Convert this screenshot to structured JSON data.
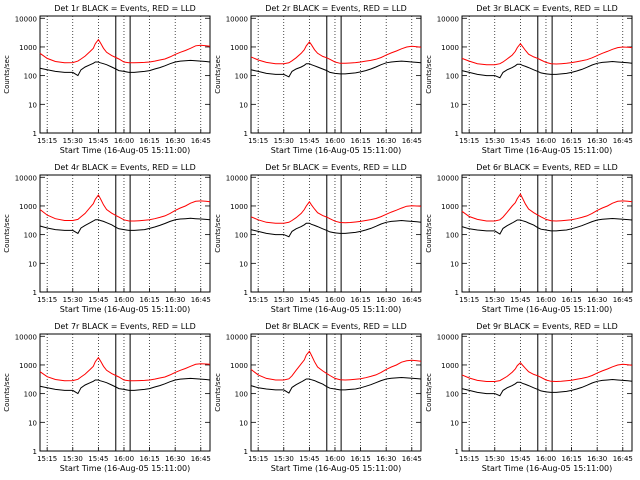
{
  "colors": {
    "events": "#000000",
    "lld": "#ff0000",
    "background": "#ffffff",
    "frame": "#000000"
  },
  "shared": {
    "xlabel": "Start Time (16-Aug-05 15:11:00)",
    "ylabel": "Counts/sec",
    "x_ticks": [
      "15:15",
      "15:30",
      "15:45",
      "16:00",
      "16:15",
      "16:30",
      "16:45"
    ],
    "x_tick_minutes": [
      15.25,
      15.5,
      15.75,
      16.0,
      16.25,
      16.5,
      16.75
    ],
    "y_ticks": [
      "1",
      "10",
      "100",
      "1000",
      "10000"
    ],
    "y_tick_values": [
      1,
      10,
      100,
      1000,
      10000
    ],
    "xlim_hours": [
      15.18,
      16.84
    ],
    "ylim": [
      1,
      12000
    ],
    "y_scale": "log"
  },
  "chart_data": [
    {
      "type": "line",
      "title": "Det 1r BLACK = Events, RED = LLD",
      "y_scale": "log",
      "x": [
        15.18,
        15.25,
        15.33,
        15.42,
        15.5,
        15.55,
        15.58,
        15.62,
        15.67,
        15.7,
        15.72,
        15.75,
        15.77,
        15.8,
        15.83,
        15.88,
        15.92,
        15.95,
        16.0,
        16.05,
        16.1,
        16.15,
        16.2,
        16.25,
        16.3,
        16.35,
        16.4,
        16.45,
        16.5,
        16.55,
        16.6,
        16.65,
        16.7,
        16.75,
        16.8,
        16.84
      ],
      "series": [
        {
          "name": "LLD",
          "values": [
            600,
            400,
            310,
            280,
            285,
            320,
            380,
            480,
            700,
            900,
            1300,
            1800,
            1400,
            900,
            650,
            500,
            430,
            380,
            300,
            280,
            280,
            285,
            290,
            300,
            320,
            350,
            380,
            450,
            550,
            650,
            750,
            900,
            1100,
            1150,
            1100,
            1050
          ]
        },
        {
          "name": "Events",
          "values": [
            180,
            160,
            140,
            130,
            130,
            100,
            160,
            200,
            240,
            270,
            300,
            300,
            280,
            260,
            240,
            200,
            170,
            150,
            140,
            130,
            130,
            135,
            140,
            150,
            170,
            190,
            220,
            260,
            300,
            320,
            330,
            340,
            330,
            320,
            310,
            300
          ]
        }
      ]
    },
    {
      "type": "line",
      "title": "Det 2r BLACK = Events, RED = LLD",
      "y_scale": "log",
      "x": [
        15.18,
        15.25,
        15.33,
        15.42,
        15.5,
        15.55,
        15.58,
        15.62,
        15.67,
        15.7,
        15.72,
        15.75,
        15.77,
        15.8,
        15.83,
        15.88,
        15.92,
        15.95,
        16.0,
        16.05,
        16.1,
        16.15,
        16.2,
        16.25,
        16.3,
        16.35,
        16.4,
        16.45,
        16.5,
        16.55,
        16.6,
        16.65,
        16.7,
        16.75,
        16.8,
        16.84
      ],
      "series": [
        {
          "name": "LLD",
          "values": [
            450,
            350,
            290,
            260,
            260,
            280,
            330,
            420,
            600,
            800,
            1100,
            1500,
            1200,
            800,
            600,
            470,
            420,
            370,
            300,
            270,
            270,
            275,
            285,
            300,
            320,
            340,
            370,
            430,
            520,
            620,
            720,
            860,
            1000,
            1050,
            1020,
            980
          ]
        },
        {
          "name": "Events",
          "values": [
            160,
            140,
            120,
            110,
            110,
            90,
            140,
            170,
            200,
            230,
            260,
            260,
            240,
            220,
            200,
            170,
            150,
            130,
            120,
            115,
            115,
            120,
            125,
            135,
            150,
            170,
            200,
            240,
            280,
            300,
            310,
            320,
            310,
            300,
            290,
            280
          ]
        }
      ]
    },
    {
      "type": "line",
      "title": "Det 3r BLACK = Events, RED = LLD",
      "y_scale": "log",
      "x": [
        15.18,
        15.25,
        15.33,
        15.42,
        15.5,
        15.55,
        15.58,
        15.62,
        15.67,
        15.7,
        15.72,
        15.75,
        15.77,
        15.8,
        15.83,
        15.88,
        15.92,
        15.95,
        16.0,
        16.05,
        16.1,
        16.15,
        16.2,
        16.25,
        16.3,
        16.35,
        16.4,
        16.45,
        16.5,
        16.55,
        16.6,
        16.65,
        16.7,
        16.75,
        16.8,
        16.84
      ],
      "series": [
        {
          "name": "LLD",
          "values": [
            400,
            320,
            260,
            240,
            240,
            260,
            300,
            380,
            520,
            700,
            950,
            1300,
            1050,
            750,
            560,
            450,
            400,
            350,
            290,
            260,
            255,
            260,
            270,
            285,
            305,
            330,
            360,
            420,
            500,
            600,
            700,
            830,
            950,
            1000,
            980,
            950
          ]
        },
        {
          "name": "Events",
          "values": [
            150,
            130,
            110,
            100,
            100,
            85,
            130,
            160,
            190,
            220,
            250,
            250,
            230,
            210,
            190,
            160,
            140,
            125,
            115,
            110,
            110,
            115,
            120,
            130,
            145,
            165,
            195,
            235,
            270,
            290,
            300,
            310,
            300,
            290,
            280,
            270
          ]
        }
      ]
    },
    {
      "type": "line",
      "title": "Det 4r BLACK = Events, RED = LLD",
      "y_scale": "log",
      "x": [
        15.18,
        15.25,
        15.33,
        15.42,
        15.5,
        15.55,
        15.58,
        15.62,
        15.67,
        15.7,
        15.72,
        15.75,
        15.77,
        15.8,
        15.83,
        15.88,
        15.92,
        15.95,
        16.0,
        16.05,
        16.1,
        16.15,
        16.2,
        16.25,
        16.3,
        16.35,
        16.4,
        16.45,
        16.5,
        16.55,
        16.6,
        16.65,
        16.7,
        16.75,
        16.8,
        16.84
      ],
      "series": [
        {
          "name": "LLD",
          "values": [
            750,
            480,
            360,
            310,
            310,
            340,
            420,
            550,
            900,
            1200,
            1700,
            2400,
            1800,
            1100,
            750,
            560,
            470,
            410,
            330,
            300,
            300,
            305,
            315,
            330,
            360,
            400,
            450,
            550,
            700,
            850,
            1000,
            1250,
            1450,
            1500,
            1450,
            1400
          ]
        },
        {
          "name": "Events",
          "values": [
            200,
            170,
            150,
            140,
            140,
            110,
            170,
            210,
            260,
            300,
            330,
            330,
            310,
            290,
            260,
            220,
            180,
            160,
            150,
            140,
            140,
            145,
            150,
            165,
            185,
            210,
            245,
            290,
            330,
            350,
            360,
            370,
            360,
            350,
            340,
            330
          ]
        }
      ]
    },
    {
      "type": "line",
      "title": "Det 5r BLACK = Events, RED = LLD",
      "y_scale": "log",
      "x": [
        15.18,
        15.25,
        15.33,
        15.42,
        15.5,
        15.55,
        15.58,
        15.62,
        15.67,
        15.7,
        15.72,
        15.75,
        15.77,
        15.8,
        15.83,
        15.88,
        15.92,
        15.95,
        16.0,
        16.05,
        16.1,
        16.15,
        16.2,
        16.25,
        16.3,
        16.35,
        16.4,
        16.45,
        16.5,
        16.55,
        16.6,
        16.65,
        16.7,
        16.75,
        16.8,
        16.84
      ],
      "series": [
        {
          "name": "LLD",
          "values": [
            420,
            330,
            270,
            250,
            250,
            270,
            310,
            390,
            550,
            750,
            1000,
            1400,
            1100,
            780,
            580,
            460,
            410,
            360,
            295,
            265,
            260,
            265,
            275,
            290,
            310,
            335,
            365,
            425,
            510,
            610,
            710,
            840,
            980,
            1020,
            1000,
            970
          ]
        },
        {
          "name": "Events",
          "values": [
            150,
            130,
            110,
            100,
            100,
            85,
            130,
            160,
            190,
            220,
            250,
            250,
            230,
            210,
            190,
            160,
            140,
            125,
            115,
            110,
            110,
            115,
            120,
            130,
            145,
            165,
            195,
            235,
            270,
            290,
            300,
            310,
            300,
            290,
            280,
            270
          ]
        }
      ]
    },
    {
      "type": "line",
      "title": "Det 6r BLACK = Events, RED = LLD",
      "y_scale": "log",
      "x": [
        15.18,
        15.25,
        15.33,
        15.42,
        15.5,
        15.55,
        15.58,
        15.62,
        15.67,
        15.7,
        15.72,
        15.75,
        15.77,
        15.8,
        15.83,
        15.88,
        15.92,
        15.95,
        16.0,
        16.05,
        16.1,
        16.15,
        16.2,
        16.25,
        16.3,
        16.35,
        16.4,
        16.45,
        16.5,
        16.55,
        16.6,
        16.65,
        16.7,
        16.75,
        16.8,
        16.84
      ],
      "series": [
        {
          "name": "LLD",
          "values": [
            650,
            430,
            340,
            300,
            300,
            330,
            410,
            600,
            1000,
            1300,
            1800,
            2600,
            1900,
            1150,
            780,
            580,
            480,
            420,
            340,
            305,
            300,
            305,
            315,
            330,
            360,
            400,
            450,
            550,
            700,
            850,
            1000,
            1250,
            1450,
            1500,
            1450,
            1400
          ]
        },
        {
          "name": "Events",
          "values": [
            190,
            160,
            145,
            135,
            135,
            105,
            165,
            205,
            255,
            295,
            325,
            325,
            305,
            285,
            255,
            215,
            175,
            155,
            145,
            135,
            135,
            140,
            145,
            160,
            180,
            205,
            240,
            285,
            325,
            345,
            355,
            365,
            355,
            345,
            335,
            325
          ]
        }
      ]
    },
    {
      "type": "line",
      "title": "Det 7r BLACK = Events, RED = LLD",
      "y_scale": "log",
      "x": [
        15.18,
        15.25,
        15.33,
        15.42,
        15.5,
        15.55,
        15.58,
        15.62,
        15.67,
        15.7,
        15.72,
        15.75,
        15.77,
        15.8,
        15.83,
        15.88,
        15.92,
        15.95,
        16.0,
        16.05,
        16.1,
        16.15,
        16.2,
        16.25,
        16.3,
        16.35,
        16.4,
        16.45,
        16.5,
        16.55,
        16.6,
        16.65,
        16.7,
        16.75,
        16.8,
        16.84
      ],
      "series": [
        {
          "name": "LLD",
          "values": [
            580,
            390,
            310,
            280,
            285,
            315,
            380,
            480,
            700,
            900,
            1300,
            1800,
            1400,
            900,
            650,
            500,
            430,
            380,
            300,
            280,
            280,
            285,
            290,
            300,
            320,
            350,
            380,
            450,
            550,
            650,
            750,
            900,
            1050,
            1100,
            1080,
            1050
          ]
        },
        {
          "name": "Events",
          "values": [
            180,
            160,
            140,
            130,
            130,
            100,
            160,
            200,
            240,
            270,
            300,
            300,
            280,
            260,
            240,
            200,
            170,
            150,
            140,
            130,
            130,
            135,
            140,
            150,
            170,
            190,
            220,
            260,
            300,
            320,
            330,
            340,
            330,
            320,
            310,
            300
          ]
        }
      ]
    },
    {
      "type": "line",
      "title": "Det 8r BLACK = Events, RED = LLD",
      "y_scale": "log",
      "x": [
        15.18,
        15.25,
        15.33,
        15.42,
        15.5,
        15.55,
        15.58,
        15.62,
        15.67,
        15.7,
        15.72,
        15.75,
        15.77,
        15.8,
        15.83,
        15.88,
        15.92,
        15.95,
        16.0,
        16.05,
        16.1,
        16.15,
        16.2,
        16.25,
        16.3,
        16.35,
        16.4,
        16.45,
        16.5,
        16.55,
        16.6,
        16.65,
        16.7,
        16.75,
        16.8,
        16.84
      ],
      "series": [
        {
          "name": "LLD",
          "values": [
            700,
            450,
            340,
            300,
            300,
            330,
            420,
            650,
            1100,
            1500,
            2200,
            3000,
            2200,
            1300,
            850,
            620,
            500,
            430,
            340,
            305,
            300,
            305,
            315,
            330,
            360,
            400,
            450,
            550,
            700,
            850,
            1000,
            1250,
            1400,
            1450,
            1400,
            1350
          ]
        },
        {
          "name": "Events",
          "values": [
            190,
            160,
            145,
            135,
            135,
            105,
            165,
            205,
            255,
            295,
            325,
            325,
            305,
            285,
            255,
            215,
            175,
            155,
            145,
            135,
            135,
            140,
            145,
            160,
            180,
            205,
            240,
            285,
            325,
            345,
            355,
            365,
            355,
            345,
            335,
            325
          ]
        }
      ]
    },
    {
      "type": "line",
      "title": "Det 9r BLACK = Events, RED = LLD",
      "y_scale": "log",
      "x": [
        15.18,
        15.25,
        15.33,
        15.42,
        15.5,
        15.55,
        15.58,
        15.62,
        15.67,
        15.7,
        15.72,
        15.75,
        15.77,
        15.8,
        15.83,
        15.88,
        15.92,
        15.95,
        16.0,
        16.05,
        16.1,
        16.15,
        16.2,
        16.25,
        16.3,
        16.35,
        16.4,
        16.45,
        16.5,
        16.55,
        16.6,
        16.65,
        16.7,
        16.75,
        16.8,
        16.84
      ],
      "series": [
        {
          "name": "LLD",
          "values": [
            450,
            350,
            290,
            265,
            265,
            285,
            330,
            400,
            560,
            720,
            950,
            1200,
            1000,
            760,
            580,
            470,
            420,
            370,
            300,
            270,
            265,
            270,
            280,
            295,
            315,
            340,
            370,
            430,
            520,
            620,
            720,
            860,
            1000,
            1050,
            1020,
            980
          ]
        },
        {
          "name": "Events",
          "values": [
            150,
            130,
            110,
            100,
            100,
            85,
            130,
            160,
            190,
            220,
            250,
            250,
            230,
            210,
            190,
            160,
            140,
            125,
            115,
            110,
            110,
            115,
            120,
            130,
            145,
            165,
            195,
            235,
            270,
            290,
            300,
            310,
            300,
            290,
            280,
            270
          ]
        }
      ]
    }
  ]
}
